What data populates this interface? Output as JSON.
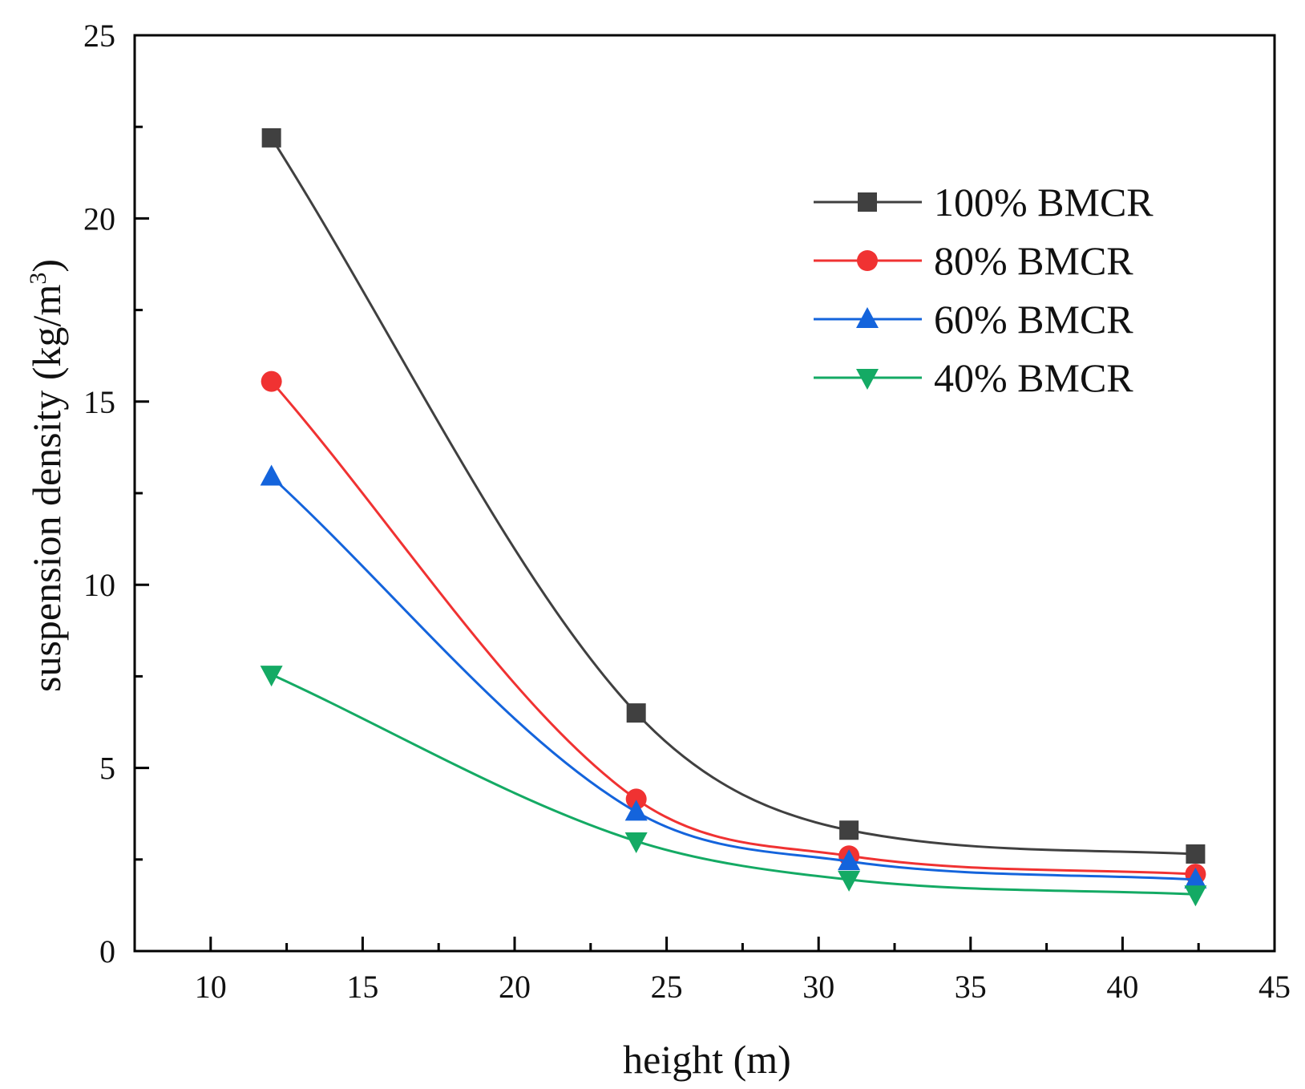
{
  "chart_data": {
    "type": "line",
    "title": "",
    "xlabel": "height (m)",
    "ylabel_prefix": "suspension density (kg/m",
    "ylabel_sup": "3",
    "ylabel_suffix": ")",
    "xlim": [
      7.5,
      45
    ],
    "ylim": [
      0,
      25
    ],
    "xticks": [
      10,
      15,
      20,
      25,
      30,
      35,
      40,
      45
    ],
    "yticks": [
      0,
      5,
      10,
      15,
      20,
      25
    ],
    "xtick_labels": [
      "10",
      "15",
      "20",
      "25",
      "30",
      "35",
      "40",
      "45"
    ],
    "ytick_labels": [
      "0",
      "5",
      "10",
      "15",
      "20",
      "25"
    ],
    "x": [
      12,
      24,
      31,
      42.4
    ],
    "legend_position": "top-right",
    "grid": false,
    "series": [
      {
        "name": "100% BMCR",
        "marker": "square",
        "color": "#404040",
        "values": [
          22.2,
          6.5,
          3.3,
          2.65
        ]
      },
      {
        "name": "80% BMCR",
        "marker": "circle",
        "color": "#f03232",
        "values": [
          15.55,
          4.15,
          2.6,
          2.1
        ]
      },
      {
        "name": "60% BMCR",
        "marker": "triangle-up",
        "color": "#1464dc",
        "values": [
          12.95,
          3.8,
          2.45,
          1.95
        ]
      },
      {
        "name": "40% BMCR",
        "marker": "triangle-down",
        "color": "#14aa64",
        "values": [
          7.55,
          3.0,
          1.95,
          1.55
        ]
      }
    ]
  }
}
